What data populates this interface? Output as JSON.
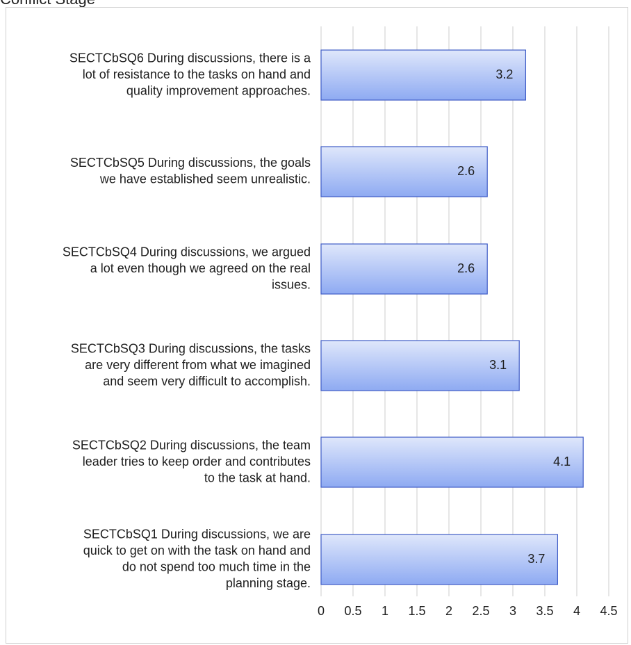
{
  "chart_data": {
    "type": "bar",
    "orientation": "horizontal",
    "title": "Conflict Stage",
    "categories": [
      [
        "SECTCbSQ6 During discussions, there is a",
        "lot of resistance to the tasks on hand and",
        "quality improvement approaches."
      ],
      [
        "SECTCbSQ5 During discussions, the goals",
        "we have established seem unrealistic."
      ],
      [
        "SECTCbSQ4 During discussions, we argued",
        "a lot even though we agreed on the real",
        "issues."
      ],
      [
        "SECTCbSQ3 During discussions, the tasks",
        "are very different from what we imagined",
        "and seem very difficult to accomplish."
      ],
      [
        "SECTCbSQ2 During discussions, the team",
        "leader tries to keep order and contributes",
        "to the task at hand."
      ],
      [
        "SECTCbSQ1 During discussions, we are",
        "quick to get on with the task on hand and",
        "do not spend too much time in the",
        "planning stage."
      ]
    ],
    "values": [
      3.2,
      2.6,
      2.6,
      3.1,
      4.1,
      3.7
    ],
    "value_labels": [
      "3.2",
      "2.6",
      "2.6",
      "3.1",
      "4.1",
      "3.7"
    ],
    "xlim": [
      0,
      4.5
    ],
    "xticks": [
      0,
      0.5,
      1,
      1.5,
      2,
      2.5,
      3,
      3.5,
      4,
      4.5
    ],
    "xtick_labels": [
      "0",
      "0.5",
      "1",
      "1.5",
      "2",
      "2.5",
      "3",
      "3.5",
      "4",
      "4.5"
    ],
    "grid": "vertical",
    "legend": "none",
    "bar_colors": {
      "top": "#dfe7fb",
      "bottom": "#8eaaf2",
      "edge": "#3f5cc6"
    },
    "grid_color": "#d6d6d6"
  }
}
